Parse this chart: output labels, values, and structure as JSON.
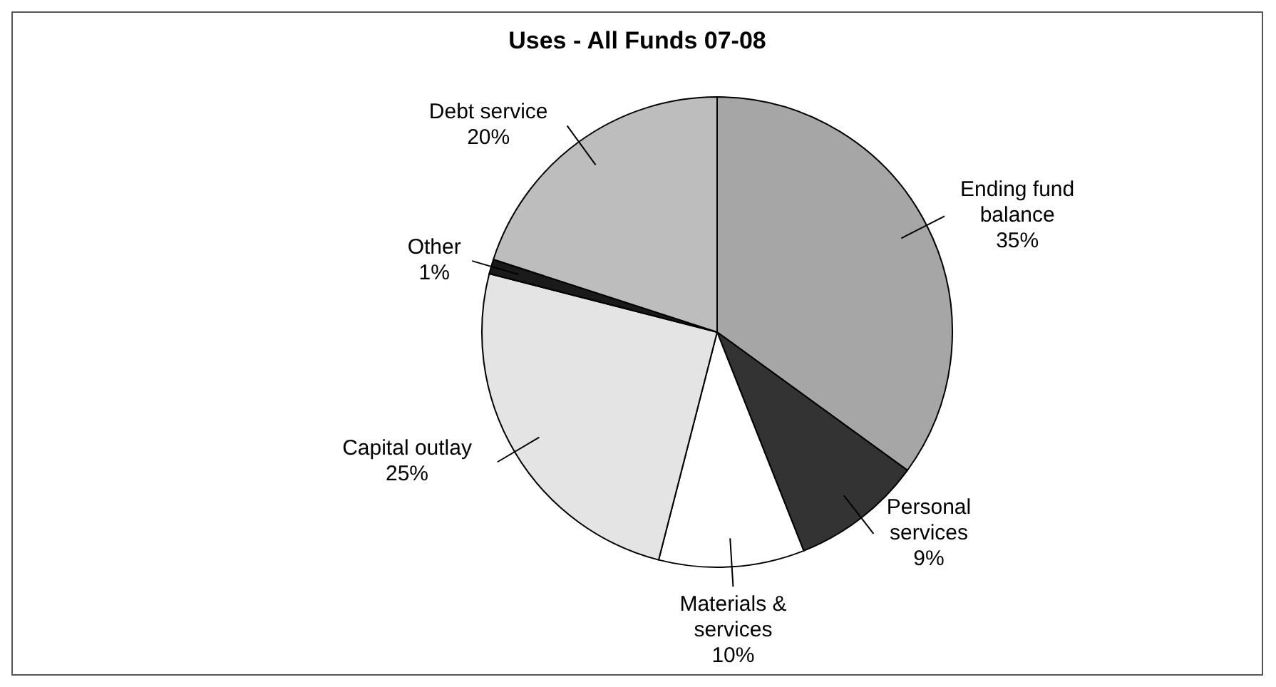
{
  "chart_data": {
    "type": "pie",
    "title": "Uses - All Funds 07-08",
    "categories": [
      "Ending fund balance",
      "Personal services",
      "Materials & services",
      "Capital outlay",
      "Other",
      "Debt service"
    ],
    "values": [
      35,
      9,
      10,
      25,
      1,
      20
    ],
    "value_labels": [
      "35%",
      "9%",
      "10%",
      "25%",
      "1%",
      "20%"
    ],
    "colors": [
      "#a6a6a6",
      "#333333",
      "#ffffff",
      "#e4e4e4",
      "#1a1a1a",
      "#bdbdbd"
    ],
    "legend": false
  }
}
